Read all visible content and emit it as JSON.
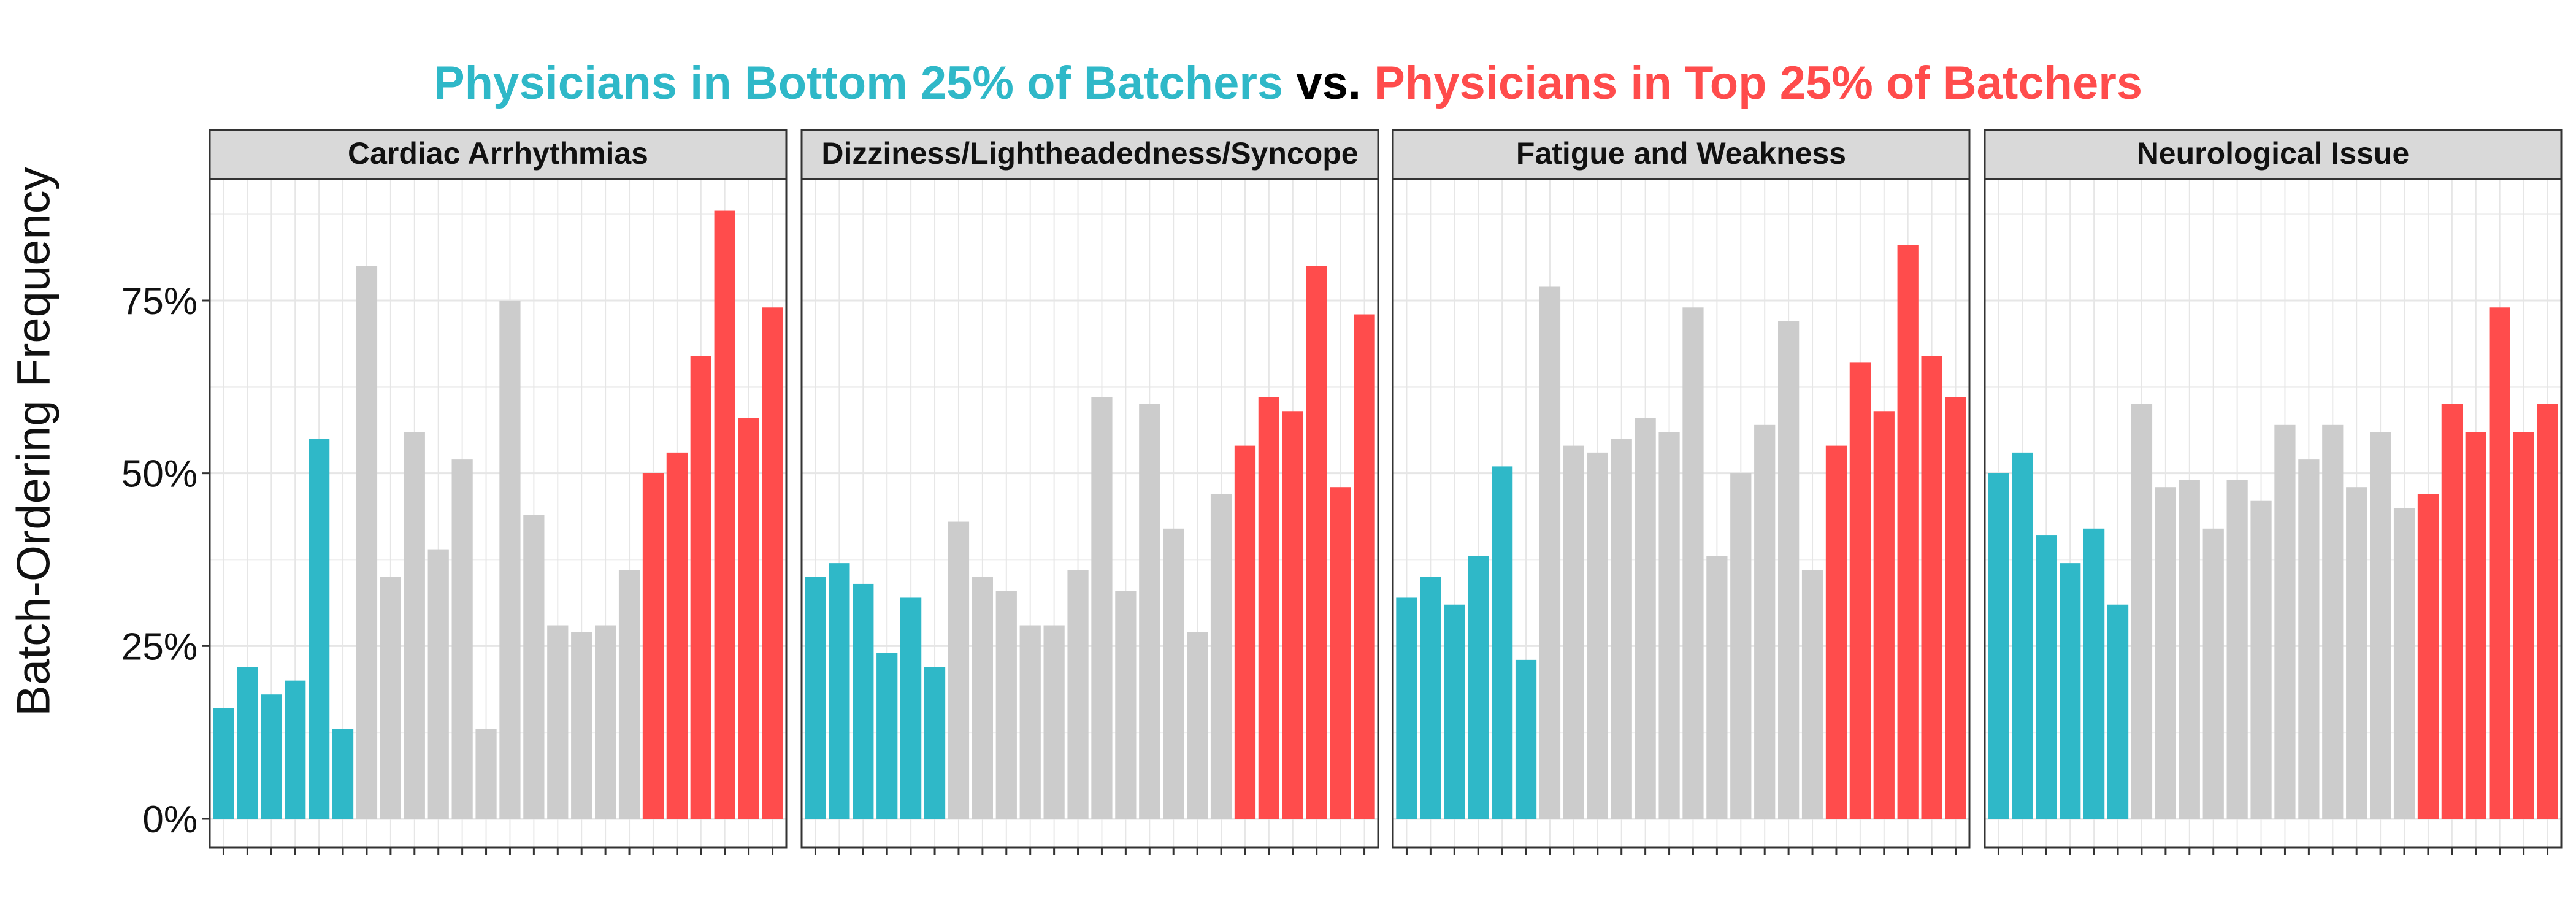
{
  "title": {
    "part1": "Physicians in Bottom 25% of Batchers",
    "part2": " vs. ",
    "part3": "Physicians in Top 25% of Batchers"
  },
  "colors": {
    "bottom": "#2fb8c8",
    "middle": "#cccccc",
    "top": "#ff4c4c",
    "title_mid": "#000000",
    "strip_fill": "#d9d9d9",
    "grid": "#e6e6e6"
  },
  "chart_data": {
    "type": "bar",
    "ylabel": "Batch-Ordering Frequency",
    "xlabel": "",
    "ylim": [
      0,
      92
    ],
    "yticks": [
      0,
      25,
      50,
      75
    ],
    "ytick_labels": [
      "0%",
      "25%",
      "50%",
      "75%"
    ],
    "grid": true,
    "group_counts": {
      "bottom": 6,
      "middle": 12,
      "top": 6
    },
    "panels": [
      {
        "title": "Cardiac Arrhythmias",
        "values": [
          16,
          22,
          18,
          20,
          55,
          13,
          80,
          35,
          56,
          39,
          52,
          13,
          75,
          44,
          28,
          27,
          28,
          36,
          50,
          53,
          67,
          88,
          58,
          74
        ]
      },
      {
        "title": "Dizziness/Lightheadedness/Syncope",
        "values": [
          35,
          37,
          34,
          24,
          32,
          22,
          43,
          35,
          33,
          28,
          28,
          36,
          61,
          33,
          60,
          42,
          27,
          47,
          54,
          61,
          59,
          80,
          48,
          73
        ]
      },
      {
        "title": "Fatigue and Weakness",
        "values": [
          32,
          35,
          31,
          38,
          51,
          23,
          77,
          54,
          53,
          55,
          58,
          56,
          74,
          38,
          50,
          57,
          72,
          36,
          54,
          66,
          59,
          83,
          67,
          61
        ]
      },
      {
        "title": "Neurological Issue",
        "values": [
          50,
          53,
          41,
          37,
          42,
          31,
          60,
          48,
          49,
          42,
          49,
          46,
          57,
          52,
          57,
          48,
          56,
          45,
          47,
          60,
          56,
          74,
          56,
          60
        ]
      }
    ]
  }
}
